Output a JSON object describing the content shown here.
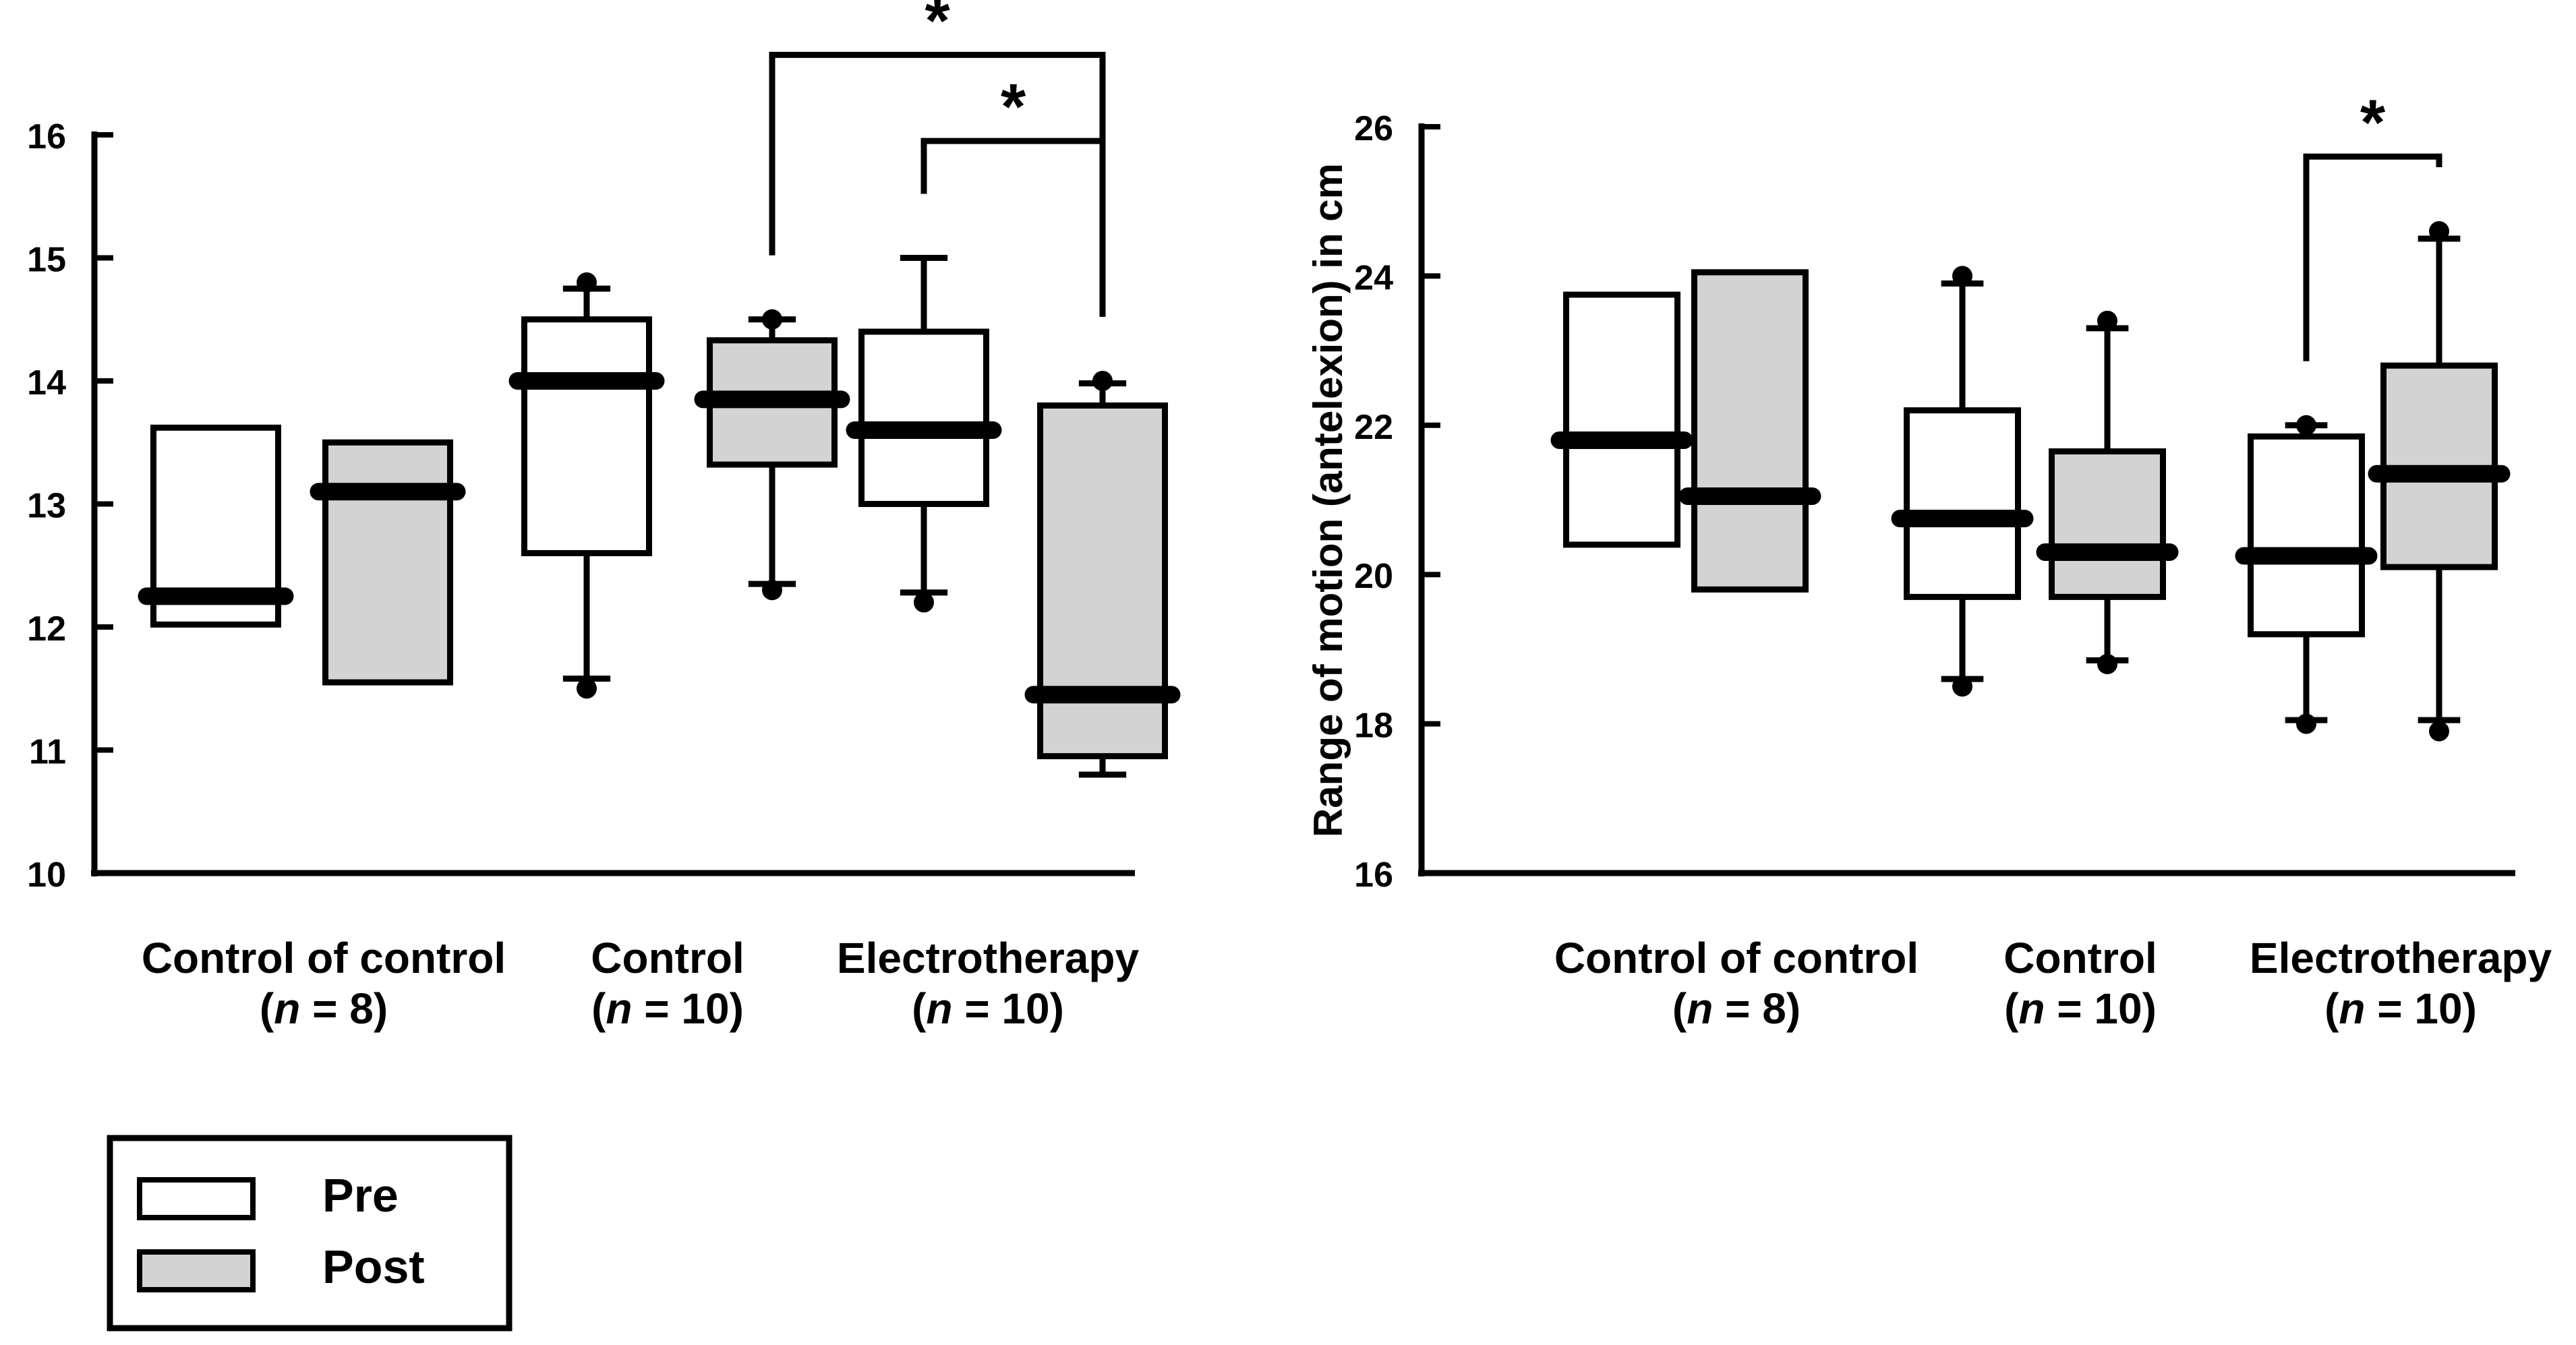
{
  "chart_data": [
    {
      "type": "box",
      "title": "",
      "ylabel": "",
      "ylim": [
        10,
        16
      ],
      "yticks": [
        "10",
        "11",
        "12",
        "13",
        "14",
        "15",
        "16"
      ],
      "groups": [
        {
          "name": "Control of control",
          "n_label": "(n = 8)",
          "n_prefix": "(",
          "n_italic": "n",
          "n_suffix": " = 8)"
        },
        {
          "name": "Control",
          "n_label": "(n = 10)",
          "n_prefix": "(",
          "n_italic": "n",
          "n_suffix": " = 10)"
        },
        {
          "name": "Electrotherapy",
          "n_label": "(n = 10)",
          "n_prefix": "(",
          "n_italic": "n",
          "n_suffix": " = 10)"
        }
      ],
      "boxes": [
        {
          "group": 0,
          "series": "Pre",
          "q1": 12.02,
          "median": 12.25,
          "q3": 13.62,
          "whisker_low": null,
          "whisker_high": null,
          "outlier_low": null,
          "outlier_high": null
        },
        {
          "group": 0,
          "series": "Post",
          "q1": 11.55,
          "median": 13.1,
          "q3": 13.5,
          "whisker_low": null,
          "whisker_high": null,
          "outlier_low": null,
          "outlier_high": null
        },
        {
          "group": 1,
          "series": "Pre",
          "q1": 12.6,
          "median": 14.0,
          "q3": 14.5,
          "whisker_low": 11.58,
          "whisker_high": 14.75,
          "outlier_low": 11.5,
          "outlier_high": 14.8
        },
        {
          "group": 1,
          "series": "Post",
          "q1": 13.32,
          "median": 13.85,
          "q3": 14.33,
          "whisker_low": 12.35,
          "whisker_high": 14.5,
          "outlier_low": 12.3,
          "outlier_high": 14.5
        },
        {
          "group": 2,
          "series": "Pre",
          "q1": 13.0,
          "median": 13.6,
          "q3": 14.4,
          "whisker_low": 12.28,
          "whisker_high": 15.0,
          "outlier_low": 12.2,
          "outlier_high": null
        },
        {
          "group": 2,
          "series": "Post",
          "q1": 10.95,
          "median": 11.45,
          "q3": 13.8,
          "whisker_low": 10.8,
          "whisker_high": 13.98,
          "outlier_low": null,
          "outlier_high": 14.0
        }
      ],
      "annotations": [
        {
          "text": "*",
          "from_group": 1,
          "from_series": "Post",
          "to_group": 2,
          "to_series": "Post",
          "level": 16.65
        },
        {
          "text": "*",
          "from_group": 2,
          "from_series": "Pre",
          "to_group": 2,
          "to_series": "Post",
          "level": 15.95
        }
      ]
    },
    {
      "type": "box",
      "title": "",
      "ylabel": "Range of motion (antelexion) in cm",
      "ylim": [
        16,
        26
      ],
      "yticks": [
        "16",
        "18",
        "20",
        "22",
        "24",
        "26"
      ],
      "groups": [
        {
          "name": "Control of control",
          "n_label": "(n = 8)",
          "n_prefix": "(",
          "n_italic": "n",
          "n_suffix": " = 8)"
        },
        {
          "name": "Control",
          "n_label": "(n = 10)",
          "n_prefix": "(",
          "n_italic": "n",
          "n_suffix": " = 10)"
        },
        {
          "name": "Electrotherapy",
          "n_label": "(n = 10)",
          "n_prefix": "(",
          "n_italic": "n",
          "n_suffix": " = 10)"
        }
      ],
      "boxes": [
        {
          "group": 0,
          "series": "Pre",
          "q1": 20.4,
          "median": 21.8,
          "q3": 23.75,
          "whisker_low": null,
          "whisker_high": null,
          "outlier_low": null,
          "outlier_high": null
        },
        {
          "group": 0,
          "series": "Post",
          "q1": 19.8,
          "median": 21.05,
          "q3": 24.05,
          "whisker_low": null,
          "whisker_high": null,
          "outlier_low": null,
          "outlier_high": null
        },
        {
          "group": 1,
          "series": "Pre",
          "q1": 19.7,
          "median": 20.75,
          "q3": 22.2,
          "whisker_low": 18.6,
          "whisker_high": 23.9,
          "outlier_low": 18.5,
          "outlier_high": 24.0
        },
        {
          "group": 1,
          "series": "Post",
          "q1": 19.7,
          "median": 20.3,
          "q3": 21.65,
          "whisker_low": 18.85,
          "whisker_high": 23.3,
          "outlier_low": 18.8,
          "outlier_high": 23.4
        },
        {
          "group": 2,
          "series": "Pre",
          "q1": 19.2,
          "median": 20.25,
          "q3": 21.85,
          "whisker_low": 18.05,
          "whisker_high": 22.0,
          "outlier_low": 18.0,
          "outlier_high": 22.0
        },
        {
          "group": 2,
          "series": "Post",
          "q1": 20.1,
          "median": 21.35,
          "q3": 22.8,
          "whisker_low": 18.05,
          "whisker_high": 24.5,
          "outlier_low": 17.9,
          "outlier_high": 24.6
        }
      ],
      "annotations": [
        {
          "text": "*",
          "from_group": 2,
          "from_series": "Pre",
          "to_group": 2,
          "to_series": "Post",
          "level": 25.6
        }
      ]
    }
  ],
  "legend": {
    "placement": "bottom-left",
    "items": [
      {
        "label": "Pre",
        "color": "#ffffff"
      },
      {
        "label": "Post",
        "color": "#d3d3d3"
      }
    ]
  },
  "colors": {
    "Pre": "#ffffff",
    "Post": "#d3d3d3",
    "stroke": "#000000"
  }
}
